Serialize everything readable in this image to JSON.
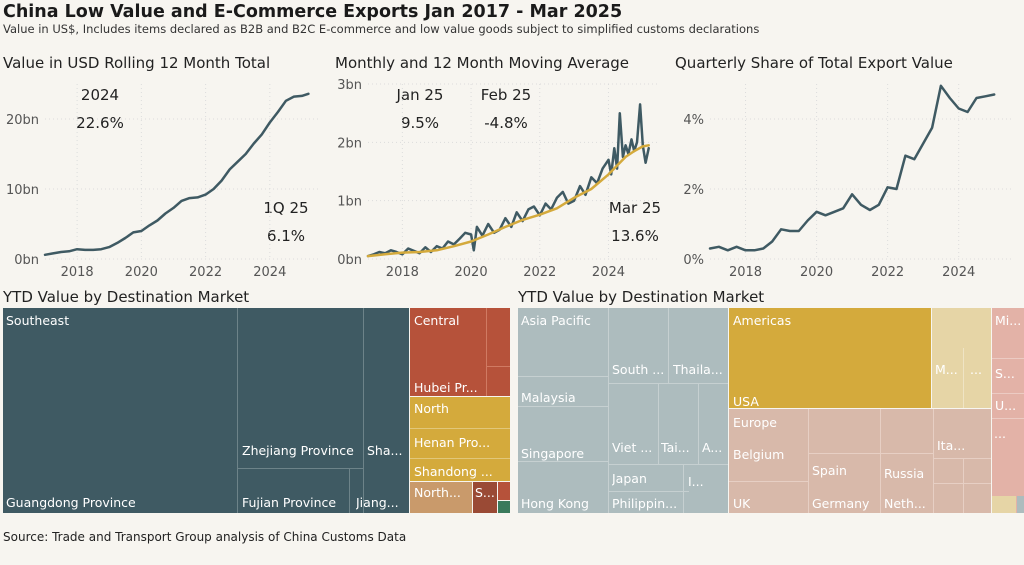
{
  "header": {
    "title": "China Low Value and E-Commerce Exports Jan 2017 - Mar 2025",
    "subtitle": "Value in US$, Includes items declared as B2B and B2C E-commerce and low value goods subject to simplified customs declarations"
  },
  "panels": {
    "rolling": {
      "title": "Value in USD Rolling 12 Month Total",
      "stat1_label": "2024",
      "stat1_value": "22.6%",
      "stat2_label": "1Q 25",
      "stat2_value": "6.1%"
    },
    "monthly": {
      "title": "Monthly and 12 Month Moving Average",
      "stat1_label": "Jan 25",
      "stat1_value": "9.5%",
      "stat2_label": "Feb 25",
      "stat2_value": "-4.8%",
      "stat3_label": "Mar 25",
      "stat3_value": "13.6%"
    },
    "share": {
      "title": "Quarterly Share of Total Export Value"
    },
    "treemap_china": {
      "title": "YTD Value by Destination Market"
    },
    "treemap_world": {
      "title": "YTD Value by Destination Market"
    }
  },
  "source": "Source: Trade and Transport Group analysis of China Customs Data",
  "colors": {
    "line": "#3f5a63",
    "ma": "#d4aa3c",
    "grid": "#dcdcdc",
    "tick": "#555555"
  },
  "chart_data": [
    {
      "type": "line",
      "title": "Value in USD Rolling 12 Month Total",
      "xlim": [
        2017.0,
        2025.5
      ],
      "ylim": [
        0,
        25
      ],
      "yticks": [
        0,
        10,
        20
      ],
      "ytick_labels": [
        "0bn",
        "10bn",
        "20bn"
      ],
      "xticks": [
        2018,
        2020,
        2022,
        2024
      ],
      "xtick_labels": [
        "2018",
        "2020",
        "2022",
        "2024"
      ],
      "series": [
        {
          "x": [
            2017.0,
            2017.25,
            2017.5,
            2017.75,
            2018.0,
            2018.25,
            2018.5,
            2018.75,
            2019.0,
            2019.25,
            2019.5,
            2019.75,
            2020.0,
            2020.25,
            2020.5,
            2020.75,
            2021.0,
            2021.25,
            2021.5,
            2021.75,
            2022.0,
            2022.25,
            2022.5,
            2022.75,
            2023.0,
            2023.25,
            2023.5,
            2023.75,
            2024.0,
            2024.25,
            2024.5,
            2024.75,
            2025.0,
            2025.2
          ],
          "y": [
            0.6,
            0.8,
            1.0,
            1.1,
            1.4,
            1.3,
            1.3,
            1.4,
            1.7,
            2.3,
            3.0,
            3.8,
            4.0,
            4.8,
            5.5,
            6.5,
            7.3,
            8.3,
            8.7,
            8.8,
            9.2,
            10.0,
            11.2,
            12.8,
            13.9,
            15.0,
            16.5,
            17.8,
            19.5,
            21.0,
            22.6,
            23.2,
            23.3,
            23.6
          ]
        }
      ]
    },
    {
      "type": "line",
      "title": "Monthly and 12 Month Moving Average",
      "xlim": [
        2017.0,
        2025.5
      ],
      "ylim": [
        0,
        3
      ],
      "yticks": [
        0,
        1,
        2,
        3
      ],
      "ytick_labels": [
        "0bn",
        "1bn",
        "2bn",
        "3bn"
      ],
      "xticks": [
        2018,
        2020,
        2022,
        2024
      ],
      "xtick_labels": [
        "2018",
        "2020",
        "2022",
        "2024"
      ],
      "series": [
        {
          "name": "Monthly",
          "x": [
            2017.0,
            2017.17,
            2017.33,
            2017.5,
            2017.67,
            2017.83,
            2018.0,
            2018.17,
            2018.33,
            2018.5,
            2018.67,
            2018.83,
            2019.0,
            2019.17,
            2019.33,
            2019.5,
            2019.67,
            2019.83,
            2020.0,
            2020.08,
            2020.17,
            2020.33,
            2020.5,
            2020.67,
            2020.83,
            2021.0,
            2021.17,
            2021.33,
            2021.5,
            2021.67,
            2021.83,
            2022.0,
            2022.17,
            2022.33,
            2022.5,
            2022.67,
            2022.83,
            2023.0,
            2023.17,
            2023.33,
            2023.5,
            2023.67,
            2023.83,
            2024.0,
            2024.08,
            2024.17,
            2024.25,
            2024.33,
            2024.42,
            2024.5,
            2024.58,
            2024.67,
            2024.75,
            2024.83,
            2024.92,
            2025.0,
            2025.08,
            2025.17
          ],
          "y": [
            0.05,
            0.08,
            0.12,
            0.1,
            0.15,
            0.12,
            0.08,
            0.18,
            0.14,
            0.1,
            0.2,
            0.12,
            0.22,
            0.18,
            0.3,
            0.25,
            0.35,
            0.45,
            0.42,
            0.15,
            0.55,
            0.4,
            0.6,
            0.45,
            0.5,
            0.7,
            0.55,
            0.8,
            0.65,
            0.85,
            0.9,
            0.75,
            0.95,
            0.85,
            1.05,
            1.15,
            0.95,
            1.0,
            1.25,
            1.1,
            1.4,
            1.3,
            1.55,
            1.7,
            1.45,
            1.9,
            1.55,
            2.5,
            1.75,
            1.95,
            1.8,
            2.05,
            1.85,
            2.0,
            2.65,
            1.95,
            1.65,
            1.9
          ]
        },
        {
          "name": "12 Month Moving Average",
          "x": [
            2017.0,
            2017.5,
            2018.0,
            2018.5,
            2019.0,
            2019.5,
            2020.0,
            2020.5,
            2021.0,
            2021.5,
            2022.0,
            2022.5,
            2023.0,
            2023.5,
            2024.0,
            2024.5,
            2024.75,
            2025.0,
            2025.17
          ],
          "y": [
            0.05,
            0.08,
            0.11,
            0.12,
            0.15,
            0.22,
            0.3,
            0.42,
            0.55,
            0.67,
            0.76,
            0.87,
            1.05,
            1.2,
            1.45,
            1.75,
            1.85,
            1.93,
            1.95
          ]
        }
      ]
    },
    {
      "type": "line",
      "title": "Quarterly Share of Total Export Value",
      "xlim": [
        2017.0,
        2025.5
      ],
      "ylim": [
        0,
        5
      ],
      "yticks": [
        0,
        2,
        4
      ],
      "ytick_labels": [
        "0%",
        "2%",
        "4%"
      ],
      "xticks": [
        2018,
        2020,
        2022,
        2024
      ],
      "xtick_labels": [
        "2018",
        "2020",
        "2022",
        "2024"
      ],
      "series": [
        {
          "x": [
            2017.0,
            2017.25,
            2017.5,
            2017.75,
            2018.0,
            2018.25,
            2018.5,
            2018.75,
            2019.0,
            2019.25,
            2019.5,
            2019.75,
            2020.0,
            2020.25,
            2020.5,
            2020.75,
            2021.0,
            2021.25,
            2021.5,
            2021.75,
            2022.0,
            2022.25,
            2022.5,
            2022.75,
            2023.0,
            2023.25,
            2023.5,
            2023.75,
            2024.0,
            2024.25,
            2024.5,
            2024.75,
            2025.0
          ],
          "y": [
            0.3,
            0.35,
            0.25,
            0.35,
            0.25,
            0.25,
            0.3,
            0.5,
            0.85,
            0.8,
            0.8,
            1.1,
            1.35,
            1.25,
            1.35,
            1.45,
            1.85,
            1.55,
            1.4,
            1.55,
            2.05,
            2.0,
            2.95,
            2.85,
            3.3,
            3.75,
            4.95,
            4.6,
            4.3,
            4.2,
            4.6,
            4.65,
            4.7
          ]
        }
      ]
    },
    {
      "type": "treemap",
      "title": "YTD Value by Destination Market",
      "nodes": [
        {
          "group": "Southeast",
          "label": "Southeast",
          "color": "#3f5a63"
        },
        {
          "group": "Southeast",
          "label": "Guangdong Province",
          "color": "#3f5a63"
        },
        {
          "group": "Southeast",
          "label": "Zhejiang Province",
          "color": "#3f5a63"
        },
        {
          "group": "Southeast",
          "label": "Sha...",
          "color": "#3f5a63"
        },
        {
          "group": "Southeast",
          "label": "Fujian Province",
          "color": "#3f5a63"
        },
        {
          "group": "Southeast",
          "label": "Jiang...",
          "color": "#3f5a63"
        },
        {
          "group": "Central",
          "label": "Central",
          "color": "#b6523a"
        },
        {
          "group": "Central",
          "label": "Hubei Pr...",
          "color": "#b6523a"
        },
        {
          "group": "North",
          "label": "North",
          "color": "#d4aa3c"
        },
        {
          "group": "North",
          "label": "Henan Pro...",
          "color": "#d4aa3c"
        },
        {
          "group": "North",
          "label": "Shandong ...",
          "color": "#d4aa3c"
        },
        {
          "group": "Northeast",
          "label": "North...",
          "color": "#c99a6b"
        },
        {
          "group": "Southwest",
          "label": "S...",
          "color": "#9a4a35"
        }
      ]
    },
    {
      "type": "treemap",
      "title": "YTD Value by Destination Market",
      "nodes": [
        {
          "group": "Asia Pacific",
          "label": "Asia Pacific",
          "color": "#adbcbe"
        },
        {
          "group": "Asia Pacific",
          "label": "South ...",
          "color": "#adbcbe"
        },
        {
          "group": "Asia Pacific",
          "label": "Thaila...",
          "color": "#adbcbe"
        },
        {
          "group": "Asia Pacific",
          "label": "Malaysia",
          "color": "#adbcbe"
        },
        {
          "group": "Asia Pacific",
          "label": "Singapore",
          "color": "#adbcbe"
        },
        {
          "group": "Asia Pacific",
          "label": "Viet ...",
          "color": "#adbcbe"
        },
        {
          "group": "Asia Pacific",
          "label": "Tai...",
          "color": "#adbcbe"
        },
        {
          "group": "Asia Pacific",
          "label": "A...",
          "color": "#adbcbe"
        },
        {
          "group": "Asia Pacific",
          "label": "Japan",
          "color": "#adbcbe"
        },
        {
          "group": "Asia Pacific",
          "label": "I...",
          "color": "#adbcbe"
        },
        {
          "group": "Asia Pacific",
          "label": "Hong Kong",
          "color": "#adbcbe"
        },
        {
          "group": "Asia Pacific",
          "label": "Philippin...",
          "color": "#adbcbe"
        },
        {
          "group": "Americas",
          "label": "Americas",
          "color": "#d4aa3c"
        },
        {
          "group": "Americas",
          "label": "USA",
          "color": "#d4aa3c"
        },
        {
          "group": "Americas",
          "label": "M...",
          "color": "#e6d5a6"
        },
        {
          "group": "Americas",
          "label": "...",
          "color": "#e6d5a6"
        },
        {
          "group": "Europe",
          "label": "Europe",
          "color": "#d8b9aa"
        },
        {
          "group": "Europe",
          "label": "Belgium",
          "color": "#d8b9aa"
        },
        {
          "group": "Europe",
          "label": "Spain",
          "color": "#d8b9aa"
        },
        {
          "group": "Europe",
          "label": "Russia",
          "color": "#d8b9aa"
        },
        {
          "group": "Europe",
          "label": "Ita...",
          "color": "#d8b9aa"
        },
        {
          "group": "Europe",
          "label": "UK",
          "color": "#d8b9aa"
        },
        {
          "group": "Europe",
          "label": "Germany",
          "color": "#d8b9aa"
        },
        {
          "group": "Europe",
          "label": "Neth...",
          "color": "#d8b9aa"
        },
        {
          "group": "Europe",
          "label": "...",
          "color": "#d8b9aa"
        },
        {
          "group": "Middle East",
          "label": "Mi...",
          "color": "#e3b2a7"
        },
        {
          "group": "Middle East",
          "label": "S...",
          "color": "#e3b2a7"
        },
        {
          "group": "Middle East",
          "label": "U...",
          "color": "#e3b2a7"
        }
      ]
    }
  ]
}
